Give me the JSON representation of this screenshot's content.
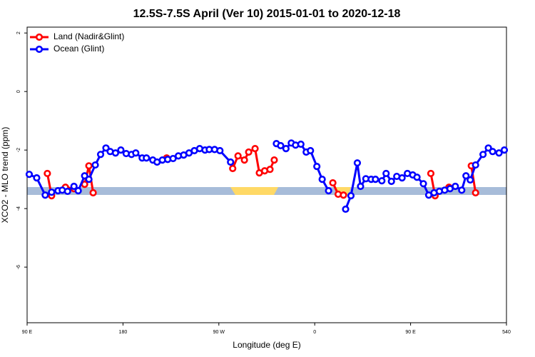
{
  "chart_data": {
    "type": "line",
    "title": "12.5S-7.5S April (Ver 10)   2015-01-01 to 2020-12-18",
    "x_label": "Longitude (deg E)",
    "y_label": "XCO2 - MLO trend (ppm)",
    "xlim": [
      90,
      540
    ],
    "ylim": [
      -7.9,
      2.2
    ],
    "xticks": [
      {
        "value": 90,
        "label": "90 E"
      },
      180,
      {
        "value": 270,
        "label": "90 W"
      },
      {
        "value": 360,
        "label": "0"
      },
      {
        "value": 450,
        "label": "90 E"
      },
      540
    ],
    "yticks": [
      -6,
      -4,
      -2,
      0,
      2
    ],
    "legend": "top-left",
    "series": [
      {
        "name": "Land (Nadir&Glint)",
        "color": "#ff0000",
        "x": [
          109,
          113,
          null,
          126,
          134,
          null,
          144,
          148,
          152,
          null,
          221,
          null,
          283,
          288,
          294,
          298,
          304,
          308,
          313,
          318,
          322,
          null,
          377,
          382,
          387,
          null,
          469,
          473,
          null,
          486,
          null,
          507,
          511
        ],
        "values": [
          -2.8,
          -3.56,
          null,
          -3.27,
          -3.32,
          null,
          -3.17,
          -2.54,
          -3.46,
          null,
          -2.27,
          null,
          -2.63,
          -2.2,
          -2.34,
          -2.07,
          -1.95,
          -2.78,
          -2.71,
          -2.66,
          -2.34,
          null,
          -3.12,
          -3.51,
          -3.54,
          null,
          -2.8,
          -3.56,
          null,
          -3.27,
          null,
          -2.54,
          -3.46
        ]
      },
      {
        "name": "Ocean (Glint)",
        "color": "#0000ff",
        "x": [
          92,
          99,
          107,
          113,
          119,
          123,
          128,
          134,
          138,
          144,
          148,
          154,
          159,
          164,
          168,
          173,
          178,
          183,
          188,
          192,
          198,
          202,
          208,
          212,
          217,
          222,
          227,
          232,
          237,
          242,
          247,
          252,
          257,
          261,
          266,
          271,
          281,
          null,
          324,
          328,
          333,
          338,
          342,
          347,
          352,
          356,
          362,
          367,
          373,
          null,
          389,
          394,
          400,
          403,
          408,
          413,
          417,
          423,
          427,
          432,
          437,
          442,
          447,
          452,
          456,
          462,
          467,
          472,
          477,
          482,
          487,
          492,
          498,
          502,
          506,
          511,
          518,
          523,
          527,
          533,
          538
        ],
        "values": [
          -2.83,
          -2.95,
          -3.54,
          -3.44,
          -3.39,
          -3.37,
          -3.41,
          -3.24,
          -3.39,
          -2.88,
          -3.0,
          -2.51,
          -2.15,
          -1.93,
          -2.05,
          -2.1,
          -2.0,
          -2.12,
          -2.15,
          -2.1,
          -2.27,
          -2.27,
          -2.34,
          -2.41,
          -2.34,
          -2.32,
          -2.29,
          -2.2,
          -2.17,
          -2.1,
          -2.02,
          -1.95,
          -2.0,
          -1.98,
          -1.98,
          -2.02,
          -2.41,
          null,
          -1.78,
          -1.85,
          -1.95,
          -1.76,
          -1.83,
          -1.8,
          -2.07,
          -2.02,
          -2.56,
          -3.0,
          -3.39,
          null,
          -4.02,
          -3.56,
          -2.44,
          -3.24,
          -2.98,
          -3.0,
          -3.0,
          -3.05,
          -2.8,
          -3.07,
          -2.9,
          -2.95,
          -2.8,
          -2.85,
          -2.93,
          -3.15,
          -3.54,
          -3.46,
          -3.41,
          -3.37,
          -3.32,
          -3.24,
          -3.37,
          -2.88,
          -3.02,
          -2.51,
          -2.15,
          -1.93,
          -2.05,
          -2.1,
          -2.0
        ]
      }
    ]
  }
}
